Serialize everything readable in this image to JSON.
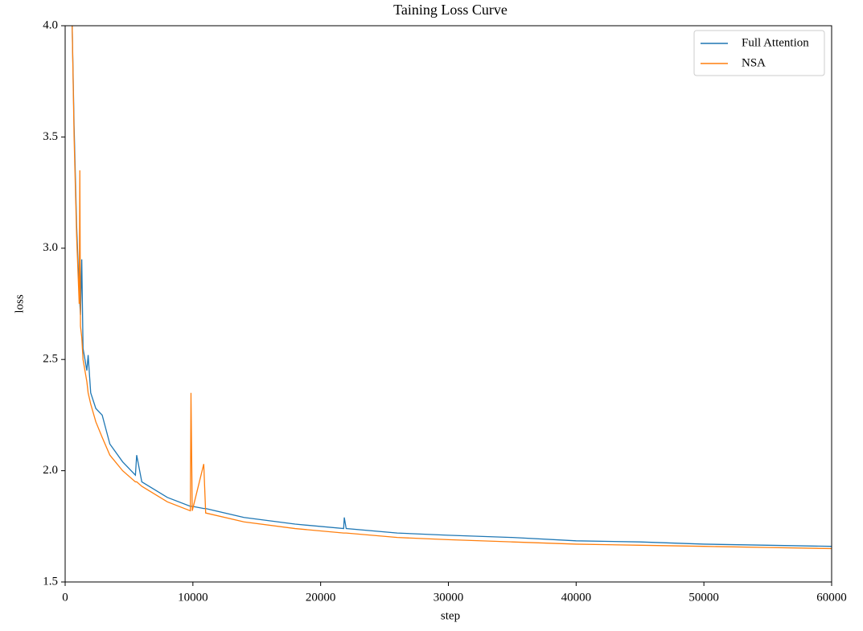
{
  "chart_data": {
    "type": "line",
    "title": "Taining Loss Curve",
    "x_label": "step",
    "y_label": "loss",
    "x": [
      550,
      700,
      900,
      1100,
      1150,
      1200,
      1300,
      1400,
      1700,
      1800,
      2000,
      2400,
      2900,
      3500,
      4500,
      5500,
      5600,
      6000,
      8000,
      9800,
      9850,
      9950,
      10850,
      11000,
      14000,
      18000,
      21800,
      21850,
      22000,
      26000,
      30000,
      35000,
      40000,
      45000,
      50000,
      55000,
      60000
    ],
    "series": [
      {
        "name": "Full Attention",
        "color": "#1f77b4",
        "values": [
          4.0,
          3.55,
          3.1,
          2.8,
          2.75,
          2.7,
          2.95,
          2.55,
          2.45,
          2.52,
          2.35,
          2.28,
          2.25,
          2.12,
          2.04,
          1.98,
          2.07,
          1.95,
          1.88,
          1.84,
          1.84,
          1.84,
          1.83,
          1.83,
          1.79,
          1.76,
          1.74,
          1.79,
          1.74,
          1.72,
          1.71,
          1.7,
          1.685,
          1.68,
          1.67,
          1.665,
          1.66
        ]
      },
      {
        "name": "NSA",
        "color": "#ff7f0e",
        "values": [
          4.0,
          3.5,
          3.05,
          2.75,
          3.35,
          2.65,
          2.6,
          2.5,
          2.4,
          2.35,
          2.3,
          2.22,
          2.15,
          2.07,
          2.0,
          1.95,
          1.95,
          1.93,
          1.86,
          1.82,
          2.35,
          1.82,
          2.03,
          1.81,
          1.77,
          1.74,
          1.72,
          1.72,
          1.72,
          1.7,
          1.69,
          1.68,
          1.67,
          1.665,
          1.66,
          1.655,
          1.65
        ]
      }
    ],
    "xlim": [
      0,
      60000
    ],
    "xticks": [
      0,
      10000,
      20000,
      30000,
      40000,
      50000,
      60000
    ],
    "ylim": [
      1.5,
      4.0
    ],
    "yticks": [
      1.5,
      {
        "value": 2,
        "label": "2.0"
      },
      2.5,
      {
        "value": 3,
        "label": "3.0"
      },
      3.5,
      {
        "value": 4,
        "label": "4.0"
      }
    ],
    "legend": "upper right"
  }
}
